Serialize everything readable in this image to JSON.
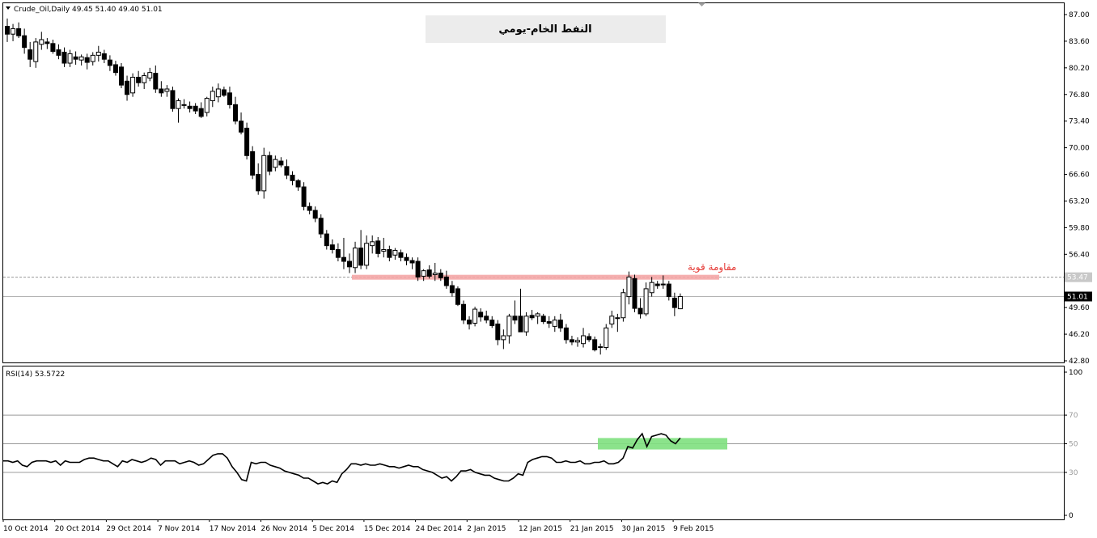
{
  "header": {
    "symbol": "Crude_Oil,Daily",
    "ohlc": "49.45 51.40 49.40 51.01"
  },
  "title_box": {
    "text": "النفط الخام-يومي"
  },
  "annotation": {
    "text": "مقاومة قوية"
  },
  "price_axis": {
    "ticks": [
      "87.00",
      "83.60",
      "80.20",
      "76.80",
      "73.40",
      "70.00",
      "66.60",
      "63.20",
      "59.80",
      "56.40",
      "49.60",
      "46.20",
      "42.80"
    ],
    "resistance_label": "53.47",
    "current_label": "51.01"
  },
  "rsi_panel": {
    "label": "RSI(14) 53.5722",
    "ticks": [
      "100",
      "70",
      "50",
      "30",
      "0"
    ]
  },
  "time_axis": {
    "labels": [
      "10 Oct 2014",
      "20 Oct 2014",
      "29 Oct 2014",
      "7 Nov 2014",
      "17 Nov 2014",
      "26 Nov 2014",
      "5 Dec 2014",
      "15 Dec 2014",
      "24 Dec 2014",
      "2 Jan 2015",
      "12 Jan 2015",
      "21 Jan 2015",
      "30 Jan 2015",
      "9 Feb 2015"
    ]
  },
  "colors": {
    "resistance_zone": "#f4a6a6",
    "rsi_zone": "#7ee07e",
    "annotation": "#e53935",
    "grid": "#c8c8c8"
  },
  "chart_data": [
    {
      "type": "candlestick",
      "symbol": "Crude_Oil",
      "timeframe": "Daily",
      "ylim": [
        42.8,
        87.0
      ],
      "resistance_level": 53.47,
      "last_price": 51.01,
      "candles": [
        {
          "o": 85.5,
          "h": 86.5,
          "l": 83.5,
          "c": 84.5
        },
        {
          "o": 84.5,
          "h": 85.8,
          "l": 83.6,
          "c": 85.2
        },
        {
          "o": 85.2,
          "h": 86.0,
          "l": 84.0,
          "c": 84.3
        },
        {
          "o": 84.3,
          "h": 85.2,
          "l": 82.0,
          "c": 82.8
        },
        {
          "o": 82.5,
          "h": 83.5,
          "l": 80.3,
          "c": 81.3
        },
        {
          "o": 81.0,
          "h": 84.0,
          "l": 80.2,
          "c": 83.5
        },
        {
          "o": 83.2,
          "h": 84.8,
          "l": 82.5,
          "c": 83.8
        },
        {
          "o": 83.5,
          "h": 84.0,
          "l": 82.6,
          "c": 83.3
        },
        {
          "o": 83.3,
          "h": 83.8,
          "l": 82.0,
          "c": 82.3
        },
        {
          "o": 82.5,
          "h": 83.2,
          "l": 81.3,
          "c": 81.8
        },
        {
          "o": 82.2,
          "h": 82.8,
          "l": 80.3,
          "c": 80.8
        },
        {
          "o": 80.8,
          "h": 82.5,
          "l": 80.3,
          "c": 82.0
        },
        {
          "o": 81.6,
          "h": 82.3,
          "l": 80.6,
          "c": 81.3
        },
        {
          "o": 81.2,
          "h": 81.9,
          "l": 80.5,
          "c": 81.6
        },
        {
          "o": 81.5,
          "h": 82.0,
          "l": 80.0,
          "c": 80.9
        },
        {
          "o": 81.0,
          "h": 82.2,
          "l": 80.5,
          "c": 81.8
        },
        {
          "o": 81.8,
          "h": 83.0,
          "l": 81.0,
          "c": 82.2
        },
        {
          "o": 82.0,
          "h": 82.5,
          "l": 80.8,
          "c": 81.3
        },
        {
          "o": 81.2,
          "h": 81.8,
          "l": 79.8,
          "c": 80.5
        },
        {
          "o": 80.6,
          "h": 81.1,
          "l": 79.2,
          "c": 79.6
        },
        {
          "o": 80.3,
          "h": 80.8,
          "l": 77.6,
          "c": 78.0
        },
        {
          "o": 78.5,
          "h": 79.2,
          "l": 76.0,
          "c": 76.8
        },
        {
          "o": 77.0,
          "h": 79.5,
          "l": 76.5,
          "c": 79.0
        },
        {
          "o": 79.0,
          "h": 79.8,
          "l": 77.8,
          "c": 78.3
        },
        {
          "o": 78.3,
          "h": 79.6,
          "l": 77.5,
          "c": 79.2
        },
        {
          "o": 78.9,
          "h": 80.2,
          "l": 78.5,
          "c": 79.6
        },
        {
          "o": 79.5,
          "h": 80.5,
          "l": 77.0,
          "c": 77.5
        },
        {
          "o": 77.5,
          "h": 78.5,
          "l": 76.5,
          "c": 77.0
        },
        {
          "o": 77.2,
          "h": 78.0,
          "l": 76.5,
          "c": 77.5
        },
        {
          "o": 77.3,
          "h": 77.8,
          "l": 74.6,
          "c": 75.0
        },
        {
          "o": 75.0,
          "h": 76.3,
          "l": 73.2,
          "c": 76.0
        },
        {
          "o": 75.5,
          "h": 76.2,
          "l": 75.0,
          "c": 75.4
        },
        {
          "o": 75.3,
          "h": 75.9,
          "l": 74.5,
          "c": 75.0
        },
        {
          "o": 75.3,
          "h": 75.7,
          "l": 74.3,
          "c": 74.7
        },
        {
          "o": 75.0,
          "h": 75.8,
          "l": 73.8,
          "c": 74.0
        },
        {
          "o": 74.5,
          "h": 76.5,
          "l": 74.0,
          "c": 76.3
        },
        {
          "o": 76.0,
          "h": 77.8,
          "l": 75.2,
          "c": 77.2
        },
        {
          "o": 76.5,
          "h": 78.2,
          "l": 75.8,
          "c": 77.5
        },
        {
          "o": 77.4,
          "h": 77.8,
          "l": 76.5,
          "c": 76.7
        },
        {
          "o": 77.0,
          "h": 77.8,
          "l": 75.0,
          "c": 75.5
        },
        {
          "o": 75.5,
          "h": 76.5,
          "l": 73.0,
          "c": 73.4
        },
        {
          "o": 73.4,
          "h": 74.5,
          "l": 71.7,
          "c": 72.0
        },
        {
          "o": 72.5,
          "h": 73.2,
          "l": 68.5,
          "c": 69.0
        },
        {
          "o": 69.5,
          "h": 70.2,
          "l": 66.0,
          "c": 66.5
        },
        {
          "o": 66.6,
          "h": 68.0,
          "l": 64.0,
          "c": 64.5
        },
        {
          "o": 64.5,
          "h": 70.0,
          "l": 63.5,
          "c": 69.0
        },
        {
          "o": 69.0,
          "h": 69.5,
          "l": 66.5,
          "c": 67.0
        },
        {
          "o": 67.5,
          "h": 69.0,
          "l": 67.0,
          "c": 68.5
        },
        {
          "o": 68.3,
          "h": 68.8,
          "l": 67.5,
          "c": 67.8
        },
        {
          "o": 67.6,
          "h": 68.5,
          "l": 66.0,
          "c": 66.5
        },
        {
          "o": 66.5,
          "h": 67.0,
          "l": 65.2,
          "c": 65.8
        },
        {
          "o": 65.8,
          "h": 66.0,
          "l": 64.5,
          "c": 65.0
        },
        {
          "o": 65.0,
          "h": 65.6,
          "l": 62.0,
          "c": 62.5
        },
        {
          "o": 62.5,
          "h": 63.0,
          "l": 61.5,
          "c": 62.0
        },
        {
          "o": 62.0,
          "h": 62.5,
          "l": 60.5,
          "c": 61.0
        },
        {
          "o": 61.0,
          "h": 61.5,
          "l": 58.5,
          "c": 59.0
        },
        {
          "o": 59.0,
          "h": 59.5,
          "l": 57.0,
          "c": 57.5
        },
        {
          "o": 57.6,
          "h": 58.3,
          "l": 56.5,
          "c": 57.0
        },
        {
          "o": 57.0,
          "h": 57.8,
          "l": 55.5,
          "c": 56.0
        },
        {
          "o": 56.0,
          "h": 58.5,
          "l": 54.5,
          "c": 55.5
        },
        {
          "o": 55.5,
          "h": 56.5,
          "l": 54.0,
          "c": 54.8
        },
        {
          "o": 54.7,
          "h": 58.0,
          "l": 54.0,
          "c": 57.2
        },
        {
          "o": 57.2,
          "h": 59.5,
          "l": 54.5,
          "c": 55.0
        },
        {
          "o": 55.0,
          "h": 58.8,
          "l": 54.5,
          "c": 57.8
        },
        {
          "o": 57.5,
          "h": 58.8,
          "l": 56.5,
          "c": 58.0
        },
        {
          "o": 58.1,
          "h": 58.6,
          "l": 56.0,
          "c": 56.5
        },
        {
          "o": 56.8,
          "h": 58.5,
          "l": 56.0,
          "c": 57.0
        },
        {
          "o": 57.0,
          "h": 57.5,
          "l": 55.5,
          "c": 56.0
        },
        {
          "o": 56.3,
          "h": 57.2,
          "l": 55.7,
          "c": 56.9
        },
        {
          "o": 56.6,
          "h": 57.0,
          "l": 55.5,
          "c": 56.0
        },
        {
          "o": 56.0,
          "h": 56.5,
          "l": 55.0,
          "c": 55.6
        },
        {
          "o": 55.6,
          "h": 56.0,
          "l": 54.5,
          "c": 55.3
        },
        {
          "o": 55.5,
          "h": 56.0,
          "l": 53.0,
          "c": 53.5
        },
        {
          "o": 53.6,
          "h": 54.5,
          "l": 53.0,
          "c": 54.3
        },
        {
          "o": 54.4,
          "h": 55.0,
          "l": 53.3,
          "c": 53.6
        },
        {
          "o": 53.8,
          "h": 55.3,
          "l": 53.0,
          "c": 54.0
        },
        {
          "o": 54.0,
          "h": 54.5,
          "l": 53.0,
          "c": 53.4
        },
        {
          "o": 53.5,
          "h": 54.3,
          "l": 52.0,
          "c": 52.4
        },
        {
          "o": 52.4,
          "h": 53.0,
          "l": 51.0,
          "c": 51.5
        },
        {
          "o": 52.0,
          "h": 52.3,
          "l": 49.8,
          "c": 50.0
        },
        {
          "o": 50.0,
          "h": 50.5,
          "l": 47.5,
          "c": 48.0
        },
        {
          "o": 48.0,
          "h": 48.5,
          "l": 46.8,
          "c": 47.5
        },
        {
          "o": 47.6,
          "h": 49.7,
          "l": 47.2,
          "c": 49.4
        },
        {
          "o": 49.0,
          "h": 49.5,
          "l": 47.8,
          "c": 48.4
        },
        {
          "o": 48.5,
          "h": 49.2,
          "l": 47.6,
          "c": 48.0
        },
        {
          "o": 48.0,
          "h": 48.5,
          "l": 47.0,
          "c": 47.3
        },
        {
          "o": 47.5,
          "h": 48.0,
          "l": 44.8,
          "c": 45.5
        },
        {
          "o": 45.5,
          "h": 46.8,
          "l": 44.3,
          "c": 46.0
        },
        {
          "o": 46.0,
          "h": 48.8,
          "l": 45.0,
          "c": 48.5
        },
        {
          "o": 48.5,
          "h": 50.5,
          "l": 47.5,
          "c": 48.0
        },
        {
          "o": 48.5,
          "h": 52.0,
          "l": 46.5,
          "c": 46.5
        },
        {
          "o": 46.5,
          "h": 49.0,
          "l": 46.0,
          "c": 48.5
        },
        {
          "o": 48.6,
          "h": 49.3,
          "l": 48.0,
          "c": 48.3
        },
        {
          "o": 48.5,
          "h": 49.0,
          "l": 47.5,
          "c": 48.8
        },
        {
          "o": 48.5,
          "h": 48.8,
          "l": 47.5,
          "c": 47.8
        },
        {
          "o": 47.8,
          "h": 48.5,
          "l": 47.0,
          "c": 47.6
        },
        {
          "o": 47.2,
          "h": 48.5,
          "l": 46.5,
          "c": 48.0
        },
        {
          "o": 48.0,
          "h": 48.8,
          "l": 46.5,
          "c": 47.0
        },
        {
          "o": 47.0,
          "h": 47.5,
          "l": 45.0,
          "c": 45.5
        },
        {
          "o": 45.5,
          "h": 46.0,
          "l": 44.8,
          "c": 45.2
        },
        {
          "o": 45.2,
          "h": 45.8,
          "l": 44.6,
          "c": 45.4
        },
        {
          "o": 45.0,
          "h": 47.0,
          "l": 44.5,
          "c": 46.0
        },
        {
          "o": 45.9,
          "h": 46.3,
          "l": 45.2,
          "c": 45.5
        },
        {
          "o": 45.5,
          "h": 45.9,
          "l": 44.0,
          "c": 44.2
        },
        {
          "o": 44.5,
          "h": 45.0,
          "l": 43.6,
          "c": 44.6
        },
        {
          "o": 44.5,
          "h": 47.5,
          "l": 44.2,
          "c": 47.0
        },
        {
          "o": 47.5,
          "h": 49.2,
          "l": 47.0,
          "c": 48.5
        },
        {
          "o": 48.2,
          "h": 48.8,
          "l": 46.5,
          "c": 48.3
        },
        {
          "o": 48.3,
          "h": 52.0,
          "l": 47.8,
          "c": 51.5
        },
        {
          "o": 51.0,
          "h": 54.2,
          "l": 50.0,
          "c": 53.5
        },
        {
          "o": 53.3,
          "h": 53.8,
          "l": 49.0,
          "c": 49.5
        },
        {
          "o": 49.5,
          "h": 50.8,
          "l": 48.2,
          "c": 48.8
        },
        {
          "o": 48.8,
          "h": 52.8,
          "l": 48.5,
          "c": 52.0
        },
        {
          "o": 51.5,
          "h": 53.5,
          "l": 51.0,
          "c": 52.8
        },
        {
          "o": 52.6,
          "h": 53.0,
          "l": 52.0,
          "c": 52.4
        },
        {
          "o": 52.5,
          "h": 53.7,
          "l": 52.0,
          "c": 52.6
        },
        {
          "o": 52.6,
          "h": 53.0,
          "l": 50.5,
          "c": 51.0
        },
        {
          "o": 50.8,
          "h": 51.5,
          "l": 48.5,
          "c": 49.6
        },
        {
          "o": 49.45,
          "h": 51.4,
          "l": 49.4,
          "c": 51.01
        }
      ]
    },
    {
      "type": "line",
      "name": "RSI(14)",
      "last_value": 53.5722,
      "ylim": [
        0,
        100
      ],
      "reference_levels": [
        70,
        50,
        30
      ],
      "values": [
        38,
        38,
        37,
        38,
        35,
        34,
        37,
        38,
        38,
        38,
        37,
        38,
        35,
        38,
        37,
        37,
        37,
        39,
        40,
        40,
        39,
        38,
        38,
        36,
        34,
        38,
        37,
        39,
        38,
        37,
        38,
        40,
        39,
        35,
        38,
        38,
        38,
        36,
        37,
        38,
        37,
        35,
        36,
        39,
        42,
        43,
        43,
        40,
        34,
        30,
        25,
        24,
        37,
        36,
        37,
        37,
        35,
        34,
        33,
        31,
        30,
        29,
        28,
        26,
        26,
        24,
        22,
        23,
        22,
        24,
        23,
        29,
        32,
        36,
        36,
        35,
        36,
        35,
        35,
        36,
        35,
        34,
        34,
        33,
        34,
        35,
        34,
        34,
        32,
        31,
        30,
        28,
        26,
        27,
        24,
        27,
        31,
        31,
        32,
        30,
        29,
        28,
        28,
        26,
        25,
        24,
        24,
        26,
        29,
        28,
        37,
        39,
        40,
        41,
        41,
        40,
        37,
        37,
        38,
        37,
        37,
        38,
        36,
        36,
        37,
        37,
        38,
        36,
        36,
        37,
        40,
        48,
        47,
        53,
        57,
        48,
        55,
        56,
        57,
        56,
        52,
        50,
        54
      ]
    }
  ]
}
